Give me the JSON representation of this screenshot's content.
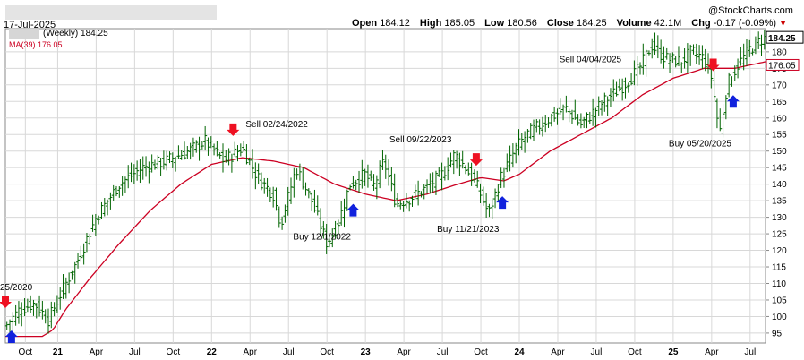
{
  "header": {
    "date": "17-Jul-2025",
    "brand": "@StockCharts.com",
    "open_label": "Open",
    "open": "184.12",
    "high_label": "High",
    "high": "185.05",
    "low_label": "Low",
    "low": "180.56",
    "close_label": "Close",
    "close": "184.25",
    "volume_label": "Volume",
    "volume": "42.1M",
    "chg_label": "Chg",
    "chg": "-0.17 (-0.09%)",
    "chg_arrow": "▼"
  },
  "legend": {
    "price": "(Weekly) 184.25",
    "ma": "MA(39) 176.05"
  },
  "colors": {
    "bars": "#006400",
    "ma": "#cc0022",
    "grid": "#d8d8d8",
    "sell_arrow": "#ee1122",
    "buy_arrow": "#1122dd",
    "ma_label_bg": "#ffffff",
    "price_label_bg": "#ffffff"
  },
  "chart_data": {
    "type": "ohlc",
    "ylim": [
      92,
      187
    ],
    "y_ticks": [
      95,
      100,
      105,
      110,
      115,
      120,
      125,
      130,
      135,
      140,
      145,
      150,
      155,
      160,
      165,
      170,
      175,
      180
    ],
    "x_range": [
      2020.66,
      2025.6
    ],
    "x_ticks": [
      {
        "t": 2020.79,
        "label": "Oct",
        "bold": false
      },
      {
        "t": 2021.0,
        "label": "21",
        "bold": true
      },
      {
        "t": 2021.25,
        "label": "Apr",
        "bold": false
      },
      {
        "t": 2021.5,
        "label": "Jul",
        "bold": false
      },
      {
        "t": 2021.75,
        "label": "Oct",
        "bold": false
      },
      {
        "t": 2022.0,
        "label": "22",
        "bold": true
      },
      {
        "t": 2022.25,
        "label": "Apr",
        "bold": false
      },
      {
        "t": 2022.5,
        "label": "Jul",
        "bold": false
      },
      {
        "t": 2022.75,
        "label": "Oct",
        "bold": false
      },
      {
        "t": 2023.0,
        "label": "23",
        "bold": true
      },
      {
        "t": 2023.25,
        "label": "Apr",
        "bold": false
      },
      {
        "t": 2023.5,
        "label": "Jul",
        "bold": false
      },
      {
        "t": 2023.75,
        "label": "Oct",
        "bold": false
      },
      {
        "t": 2024.0,
        "label": "24",
        "bold": true
      },
      {
        "t": 2024.25,
        "label": "Apr",
        "bold": false
      },
      {
        "t": 2024.5,
        "label": "Jul",
        "bold": false
      },
      {
        "t": 2024.75,
        "label": "Oct",
        "bold": false
      },
      {
        "t": 2025.0,
        "label": "25",
        "bold": true
      },
      {
        "t": 2025.25,
        "label": "Apr",
        "bold": false
      },
      {
        "t": 2025.5,
        "label": "Jul",
        "bold": false
      }
    ],
    "price_keypoints": [
      [
        2020.66,
        97
      ],
      [
        2020.75,
        102
      ],
      [
        2020.85,
        104
      ],
      [
        2020.94,
        99
      ],
      [
        2021.02,
        107
      ],
      [
        2021.12,
        116
      ],
      [
        2021.25,
        130
      ],
      [
        2021.4,
        140
      ],
      [
        2021.55,
        145
      ],
      [
        2021.7,
        147
      ],
      [
        2021.85,
        150
      ],
      [
        2021.96,
        153
      ],
      [
        2022.08,
        147
      ],
      [
        2022.2,
        151
      ],
      [
        2022.3,
        142
      ],
      [
        2022.4,
        137
      ],
      [
        2022.45,
        128
      ],
      [
        2022.55,
        145
      ],
      [
        2022.65,
        135
      ],
      [
        2022.75,
        122
      ],
      [
        2022.82,
        128
      ],
      [
        2022.9,
        140
      ],
      [
        2023.0,
        143
      ],
      [
        2023.05,
        139
      ],
      [
        2023.12,
        147
      ],
      [
        2023.2,
        134
      ],
      [
        2023.3,
        136
      ],
      [
        2023.4,
        139
      ],
      [
        2023.5,
        143
      ],
      [
        2023.58,
        149
      ],
      [
        2023.65,
        145
      ],
      [
        2023.72,
        140
      ],
      [
        2023.8,
        131
      ],
      [
        2023.88,
        142
      ],
      [
        2023.98,
        151
      ],
      [
        2024.05,
        155
      ],
      [
        2024.2,
        160
      ],
      [
        2024.3,
        163
      ],
      [
        2024.4,
        158
      ],
      [
        2024.55,
        165
      ],
      [
        2024.68,
        170
      ],
      [
        2024.78,
        175
      ],
      [
        2024.86,
        182
      ],
      [
        2024.95,
        178
      ],
      [
        2025.05,
        177
      ],
      [
        2025.12,
        180
      ],
      [
        2025.2,
        178
      ],
      [
        2025.25,
        172
      ],
      [
        2025.3,
        155
      ],
      [
        2025.35,
        170
      ],
      [
        2025.42,
        176
      ],
      [
        2025.5,
        181
      ],
      [
        2025.58,
        184
      ]
    ],
    "ma_keypoints": [
      [
        2020.66,
        94
      ],
      [
        2020.9,
        94
      ],
      [
        2020.97,
        96
      ],
      [
        2021.05,
        102
      ],
      [
        2021.2,
        111
      ],
      [
        2021.4,
        122
      ],
      [
        2021.6,
        132
      ],
      [
        2021.8,
        140
      ],
      [
        2022.0,
        146
      ],
      [
        2022.2,
        148
      ],
      [
        2022.4,
        147
      ],
      [
        2022.6,
        145
      ],
      [
        2022.8,
        140
      ],
      [
        2023.0,
        137
      ],
      [
        2023.2,
        135
      ],
      [
        2023.4,
        137
      ],
      [
        2023.6,
        140
      ],
      [
        2023.75,
        142
      ],
      [
        2023.9,
        141
      ],
      [
        2024.0,
        143
      ],
      [
        2024.2,
        150
      ],
      [
        2024.4,
        155
      ],
      [
        2024.6,
        160
      ],
      [
        2024.8,
        167
      ],
      [
        2025.0,
        172
      ],
      [
        2025.2,
        175
      ],
      [
        2025.4,
        175
      ],
      [
        2025.6,
        177
      ]
    ],
    "last_price": 184.25,
    "last_ma": 176.05,
    "signals": [
      {
        "label": "Sell 02/24/2022",
        "t": 2022.14,
        "side": "sell",
        "text_dx": 14,
        "text_dy": -8
      },
      {
        "label": "Sell 09/22/2023",
        "t": 2023.72,
        "side": "sell",
        "text_dx": -97,
        "text_dy": -24
      },
      {
        "label": "Sell 04/04/2025",
        "t": 2025.26,
        "side": "sell",
        "text_dx": -172,
        "text_dy": -8
      },
      {
        "label": "Buy 12/1/2022",
        "t": 2022.92,
        "side": "buy",
        "text_dx": -67,
        "text_dy": 40
      },
      {
        "label": "Buy 11/21/2023",
        "t": 2023.89,
        "side": "buy",
        "text_dx": -73,
        "text_dy": 40
      },
      {
        "label": "Buy 05/20/2025",
        "t": 2025.39,
        "side": "buy",
        "text_dx": -72,
        "text_dy": 57
      },
      {
        "label": "",
        "t": 2020.66,
        "side": "sell",
        "text_dx": 0,
        "text_dy": 0
      },
      {
        "label": "",
        "t": 2020.7,
        "side": "buy",
        "text_dx": 0,
        "text_dy": 0
      }
    ],
    "edge_label": "25/2020"
  }
}
